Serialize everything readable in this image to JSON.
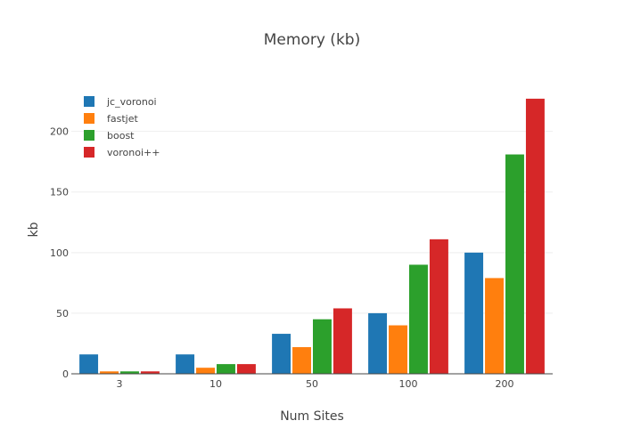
{
  "chart_data": {
    "type": "bar",
    "title": "Memory (kb)",
    "xlabel": "Num Sites",
    "ylabel": "kb",
    "categories": [
      "3",
      "10",
      "50",
      "100",
      "200"
    ],
    "ylim": [
      0,
      235
    ],
    "yticks": [
      0,
      50,
      100,
      150,
      200
    ],
    "grid": true,
    "legend_position": "top-left",
    "series": [
      {
        "name": "jc_voronoi",
        "color": "#1f77b4",
        "values": [
          16,
          16,
          33,
          50,
          100
        ]
      },
      {
        "name": "fastjet",
        "color": "#ff7f0e",
        "values": [
          2,
          5,
          22,
          40,
          79
        ]
      },
      {
        "name": "boost",
        "color": "#2ca02c",
        "values": [
          2,
          8,
          45,
          90,
          181
        ]
      },
      {
        "name": "voronoi++",
        "color": "#d62728",
        "values": [
          2,
          8,
          54,
          111,
          227
        ]
      }
    ]
  }
}
